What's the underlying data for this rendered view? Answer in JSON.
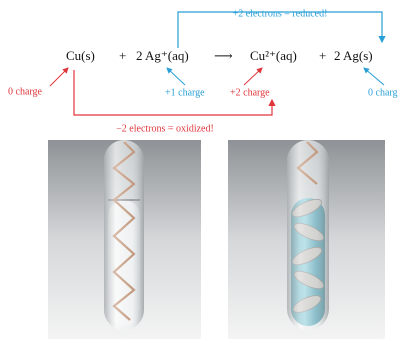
{
  "reduction_label": "+2 electrons = reduced!",
  "equation": {
    "terms": [
      "Cu(s)",
      "+",
      "2 Ag⁺(aq)",
      "⟶",
      "Cu²⁺(aq)",
      "+",
      "2 Ag(s)"
    ]
  },
  "charges": [
    "0 charge",
    "+1 charge",
    "+2 charge",
    "0 charg"
  ],
  "oxidation_label": "−2 electrons = oxidized!"
}
